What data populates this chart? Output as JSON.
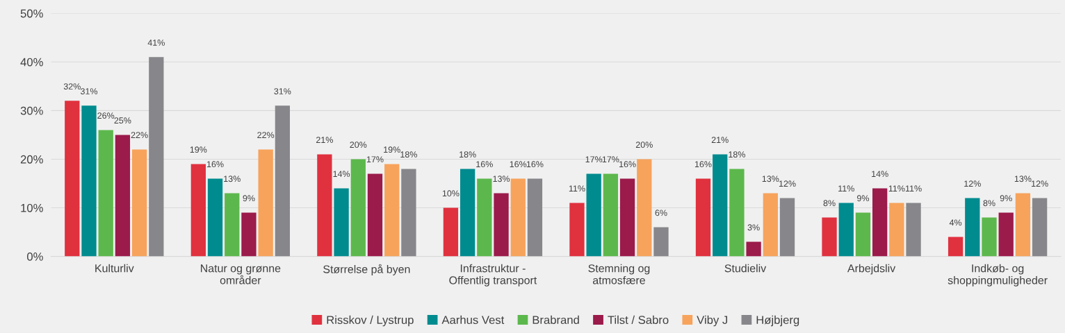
{
  "chart_data": {
    "type": "bar",
    "categories": [
      "Kulturliv",
      "Natur og grønne\nområder",
      "Størrelse på byen",
      "Infrastruktur -\nOffentlig transport",
      "Stemning og\natmosfære",
      "Studieliv",
      "Arbejdsliv",
      "Indkøb- og\nshoppingmuligheder"
    ],
    "series": [
      {
        "name": "Risskov / Lystrup",
        "color": "#e0313f",
        "values": [
          32,
          19,
          21,
          10,
          11,
          16,
          8,
          4
        ],
        "value_labels": [
          "32%",
          "19%",
          "21%",
          "10%",
          "11%",
          "16%",
          "8%",
          "4%"
        ]
      },
      {
        "name": "Aarhus Vest",
        "color": "#008b8f",
        "values": [
          31,
          16,
          14,
          18,
          17,
          21,
          11,
          12
        ],
        "value_labels": [
          "31%",
          "16%",
          "14%",
          "18%",
          "17%",
          "21%",
          "11%",
          "12%"
        ]
      },
      {
        "name": "Brabrand",
        "color": "#5cb84c",
        "values": [
          26,
          13,
          20,
          16,
          17,
          18,
          9,
          8
        ],
        "value_labels": [
          "26%",
          "13%",
          "20%",
          "16%",
          "17%",
          "18%",
          "9%",
          "8%"
        ]
      },
      {
        "name": "Tilst / Sabro",
        "color": "#9b1b4b",
        "values": [
          25,
          9,
          17,
          13,
          16,
          3,
          14,
          9
        ],
        "value_labels": [
          "25%",
          "9%",
          "17%",
          "13%",
          "16%",
          "3%",
          "14%",
          "9%"
        ]
      },
      {
        "name": "Viby J",
        "color": "#f7a35c",
        "values": [
          22,
          22,
          19,
          16,
          20,
          13,
          11,
          13
        ],
        "value_labels": [
          "22%",
          "22%",
          "19%",
          "16%",
          "20%",
          "13%",
          "11%",
          "13%"
        ]
      },
      {
        "name": "Højbjerg",
        "color": "#87878b",
        "values": [
          41,
          31,
          18,
          16,
          6,
          12,
          11,
          12
        ],
        "value_labels": [
          "41%",
          "31%",
          "18%",
          "16%",
          "6%",
          "12%",
          "11%",
          "12%"
        ]
      }
    ],
    "ylim": [
      0,
      50
    ],
    "yticks": [
      {
        "value": 0,
        "label": "0%"
      },
      {
        "value": 10,
        "label": "10%"
      },
      {
        "value": 20,
        "label": "20%"
      },
      {
        "value": 30,
        "label": "30%"
      },
      {
        "value": 40,
        "label": "40%"
      },
      {
        "value": 50,
        "label": "50%"
      }
    ],
    "grid": "y",
    "legend": "bottom"
  }
}
